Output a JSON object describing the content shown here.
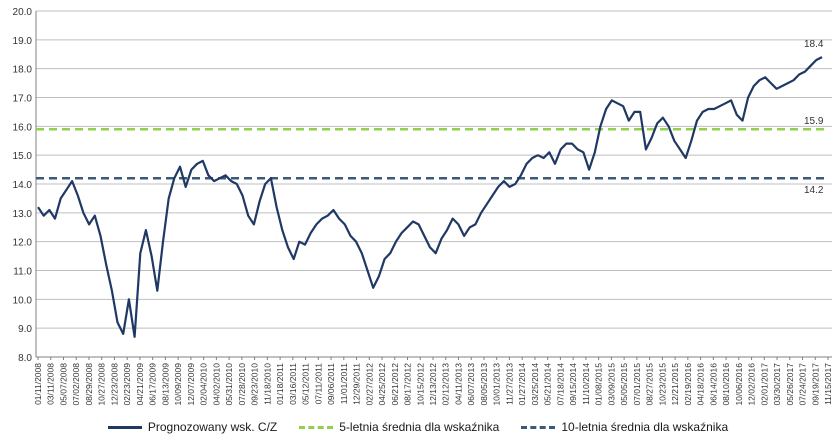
{
  "chart_data": {
    "type": "line",
    "ylim": [
      8.0,
      20.0
    ],
    "yticks": [
      "8.0",
      "9.0",
      "10.0",
      "11.0",
      "12.0",
      "13.0",
      "14.0",
      "15.0",
      "16.0",
      "17.0",
      "18.0",
      "19.0",
      "20.0"
    ],
    "grid": true,
    "legend_position": "bottom",
    "xticks": [
      "01/11/2008",
      "03/11/2008",
      "05/07/2008",
      "07/02/2008",
      "08/29/2008",
      "10/27/2008",
      "12/23/2008",
      "02/23/2009",
      "04/21/2009",
      "06/17/2009",
      "08/13/2009",
      "10/09/2009",
      "12/07/2009",
      "02/04/2010",
      "04/02/2010",
      "05/31/2010",
      "07/28/2010",
      "09/23/2010",
      "11/18/2010",
      "01/18/2011",
      "03/16/2011",
      "05/12/2011",
      "07/11/2011",
      "09/06/2011",
      "11/01/2011",
      "12/29/2011",
      "02/27/2012",
      "04/25/2012",
      "06/21/2012",
      "08/17/2012",
      "10/15/2012",
      "12/13/2012",
      "02/12/2013",
      "04/11/2013",
      "06/07/2013",
      "08/05/2013",
      "10/01/2013",
      "11/27/2013",
      "01/27/2014",
      "03/25/2014",
      "05/21/2014",
      "07/18/2014",
      "09/15/2014",
      "11/10/2014",
      "01/08/2015",
      "03/09/2015",
      "05/05/2015",
      "07/01/2015",
      "08/27/2015",
      "10/23/2015",
      "12/21/2015",
      "02/19/2016",
      "04/18/2016",
      "06/14/2016",
      "08/10/2016",
      "10/06/2016",
      "12/02/2016",
      "02/01/2017",
      "03/30/2017",
      "05/26/2017",
      "07/24/2017",
      "09/19/2017",
      "11/15/2017"
    ],
    "series": [
      {
        "name": "Prognozowany wsk. C/Z",
        "color": "#1f3864",
        "values": [
          13.2,
          12.9,
          13.1,
          12.8,
          13.5,
          13.8,
          14.1,
          13.6,
          13.0,
          12.6,
          12.9,
          12.2,
          11.2,
          10.3,
          9.2,
          8.8,
          10.0,
          8.7,
          11.6,
          12.4,
          11.5,
          10.3,
          12.0,
          13.5,
          14.2,
          14.6,
          13.9,
          14.5,
          14.7,
          14.8,
          14.3,
          14.1,
          14.2,
          14.3,
          14.1,
          14.0,
          13.6,
          12.9,
          12.6,
          13.4,
          14.0,
          14.2,
          13.2,
          12.4,
          11.8,
          11.4,
          12.0,
          11.9,
          12.3,
          12.6,
          12.8,
          12.9,
          13.1,
          12.8,
          12.6,
          12.2,
          12.0,
          11.6,
          11.0,
          10.4,
          10.8,
          11.4,
          11.6,
          12.0,
          12.3,
          12.5,
          12.7,
          12.6,
          12.2,
          11.8,
          11.6,
          12.1,
          12.4,
          12.8,
          12.6,
          12.2,
          12.5,
          12.6,
          13.0,
          13.3,
          13.6,
          13.9,
          14.1,
          13.9,
          14.0,
          14.3,
          14.7,
          14.9,
          15.0,
          14.9,
          15.1,
          14.7,
          15.2,
          15.4,
          15.4,
          15.2,
          15.1,
          14.5,
          15.1,
          16.0,
          16.6,
          16.9,
          16.8,
          16.7,
          16.2,
          16.5,
          16.5,
          15.2,
          15.6,
          16.1,
          16.3,
          16.0,
          15.5,
          15.2,
          14.9,
          15.5,
          16.2,
          16.5,
          16.6,
          16.6,
          16.7,
          16.8,
          16.9,
          16.4,
          16.2,
          17.0,
          17.4,
          17.6,
          17.7,
          17.5,
          17.3,
          17.4,
          17.5,
          17.6,
          17.8,
          17.9,
          18.1,
          18.3,
          18.4
        ]
      },
      {
        "name": "5-letnia średnia dla wskaźnika",
        "color": "#92d050",
        "dash": "dashed",
        "value": 15.9,
        "label": "15.9"
      },
      {
        "name": "10-letnia średnia dla wskaźnika",
        "color": "#3a5a78",
        "dash": "dashed",
        "value": 14.2,
        "label": "14.2"
      }
    ],
    "annotations": [
      {
        "text": "18.4"
      }
    ]
  }
}
